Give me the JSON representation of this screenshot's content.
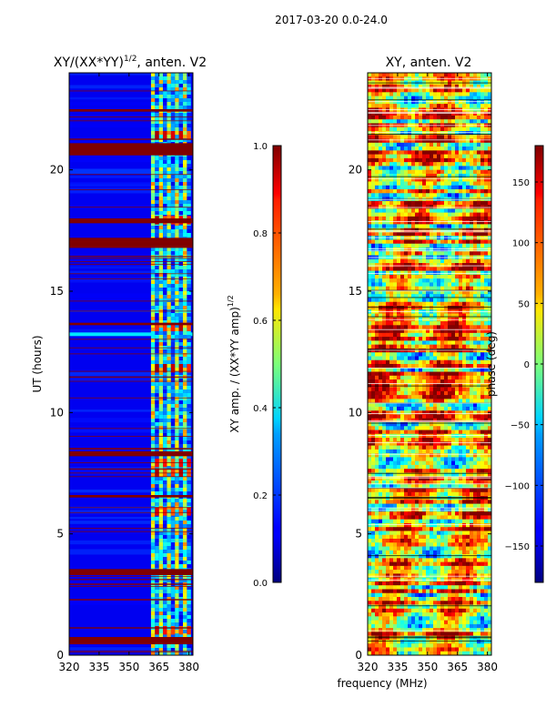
{
  "figure": {
    "suptitle": "2017-03-20 0.0-24.0",
    "shared_xlabel": "frequency (MHz)"
  },
  "chart_data": [
    {
      "type": "heatmap",
      "title_main": "XY/(XX*YY)",
      "title_sup": "1/2",
      "title_tail": ", anten. V2",
      "xlabel": "",
      "ylabel": "UT (hours)",
      "xlim": [
        320,
        382
      ],
      "ylim": [
        0,
        24
      ],
      "xticks": [
        320,
        335,
        350,
        365,
        380
      ],
      "yticks": [
        0,
        5,
        10,
        15,
        20
      ],
      "colorbar": {
        "label_main": "XY amp. / (XX*YY amp)",
        "label_sup": "1/2",
        "range": [
          0.0,
          1.0
        ],
        "ticks": [
          "0.0",
          "0.2",
          "0.4",
          "0.6",
          "0.8",
          "1.0"
        ],
        "tick_values": [
          0.0,
          0.2,
          0.4,
          0.6,
          0.8,
          1.0
        ]
      },
      "channel_columns_MHz": [
        362,
        364,
        366,
        368,
        370,
        372,
        374,
        376,
        378,
        380
      ],
      "flagged_bands_UT": [
        [
          0.45,
          0.75
        ],
        [
          1.1,
          1.15
        ],
        [
          3.3,
          3.55
        ],
        [
          6.5,
          6.6
        ],
        [
          8.2,
          8.4
        ],
        [
          13.6,
          13.7
        ],
        [
          16.8,
          17.2
        ],
        [
          17.8,
          18.0
        ],
        [
          20.6,
          21.1
        ],
        [
          22.4,
          22.5
        ]
      ],
      "bright_bands_UT": [
        1.0,
        5.9,
        7.5,
        7.9,
        11.8,
        13.5,
        17.9,
        21.4
      ]
    },
    {
      "type": "heatmap",
      "title": "XY, anten. V2",
      "xlabel": "",
      "ylabel": "",
      "xlim": [
        320,
        382
      ],
      "ylim": [
        0,
        24
      ],
      "xticks": [
        320,
        335,
        350,
        365,
        380
      ],
      "yticks": [
        0,
        5,
        10,
        15,
        20
      ],
      "colorbar": {
        "label": "phase (deg)",
        "range": [
          -180,
          180
        ],
        "ticks": [
          "−150",
          "−100",
          "−50",
          "0",
          "50",
          "100",
          "150"
        ],
        "tick_values": [
          -150,
          -100,
          -50,
          0,
          50,
          100,
          150
        ]
      }
    }
  ],
  "colors": {
    "jet_low": "#00007f",
    "jet_high": "#7f0000",
    "background": "#ffffff",
    "axes": "#000000"
  }
}
